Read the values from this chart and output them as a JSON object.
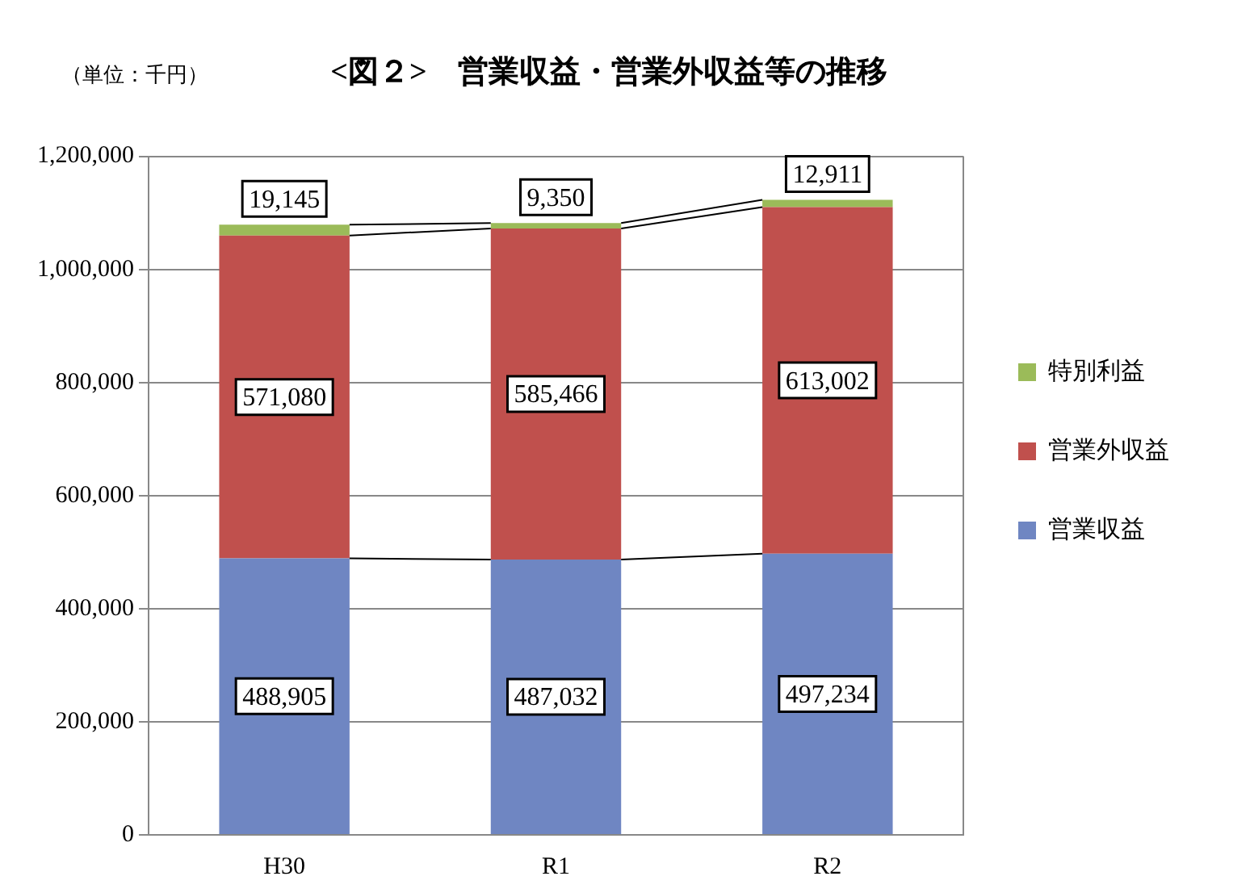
{
  "chart_data": {
    "type": "bar",
    "title": "<図２>　営業収益・営業外収益等の推移",
    "annotations": [
      "（単位：千円）"
    ],
    "categories": [
      "H30",
      "R1",
      "R2"
    ],
    "stacked": true,
    "series": [
      {
        "name": "営業収益",
        "color": "#6f86c2",
        "values": [
          488905,
          487032,
          497234
        ],
        "value_labels": [
          "488,905",
          "487,032",
          "497,234"
        ]
      },
      {
        "name": "営業外収益",
        "color": "#c0504d",
        "values": [
          571080,
          585466,
          613002
        ],
        "value_labels": [
          "571,080",
          "585,466",
          "613,002"
        ]
      },
      {
        "name": "特別利益",
        "color": "#9bbb59",
        "values": [
          19145,
          9350,
          12911
        ],
        "value_labels": [
          "19,145",
          "9,350",
          "12,911"
        ]
      }
    ],
    "ylim": [
      0,
      1200000
    ],
    "yticks": [
      {
        "value": 0,
        "label": "0"
      },
      {
        "value": 200000,
        "label": "200,000"
      },
      {
        "value": 400000,
        "label": "400,000"
      },
      {
        "value": 600000,
        "label": "600,000"
      },
      {
        "value": 800000,
        "label": "800,000"
      },
      {
        "value": 1000000,
        "label": "1,000,000"
      },
      {
        "value": 1200000,
        "label": "1,200,000"
      }
    ],
    "grid": "y",
    "legend": "right"
  }
}
